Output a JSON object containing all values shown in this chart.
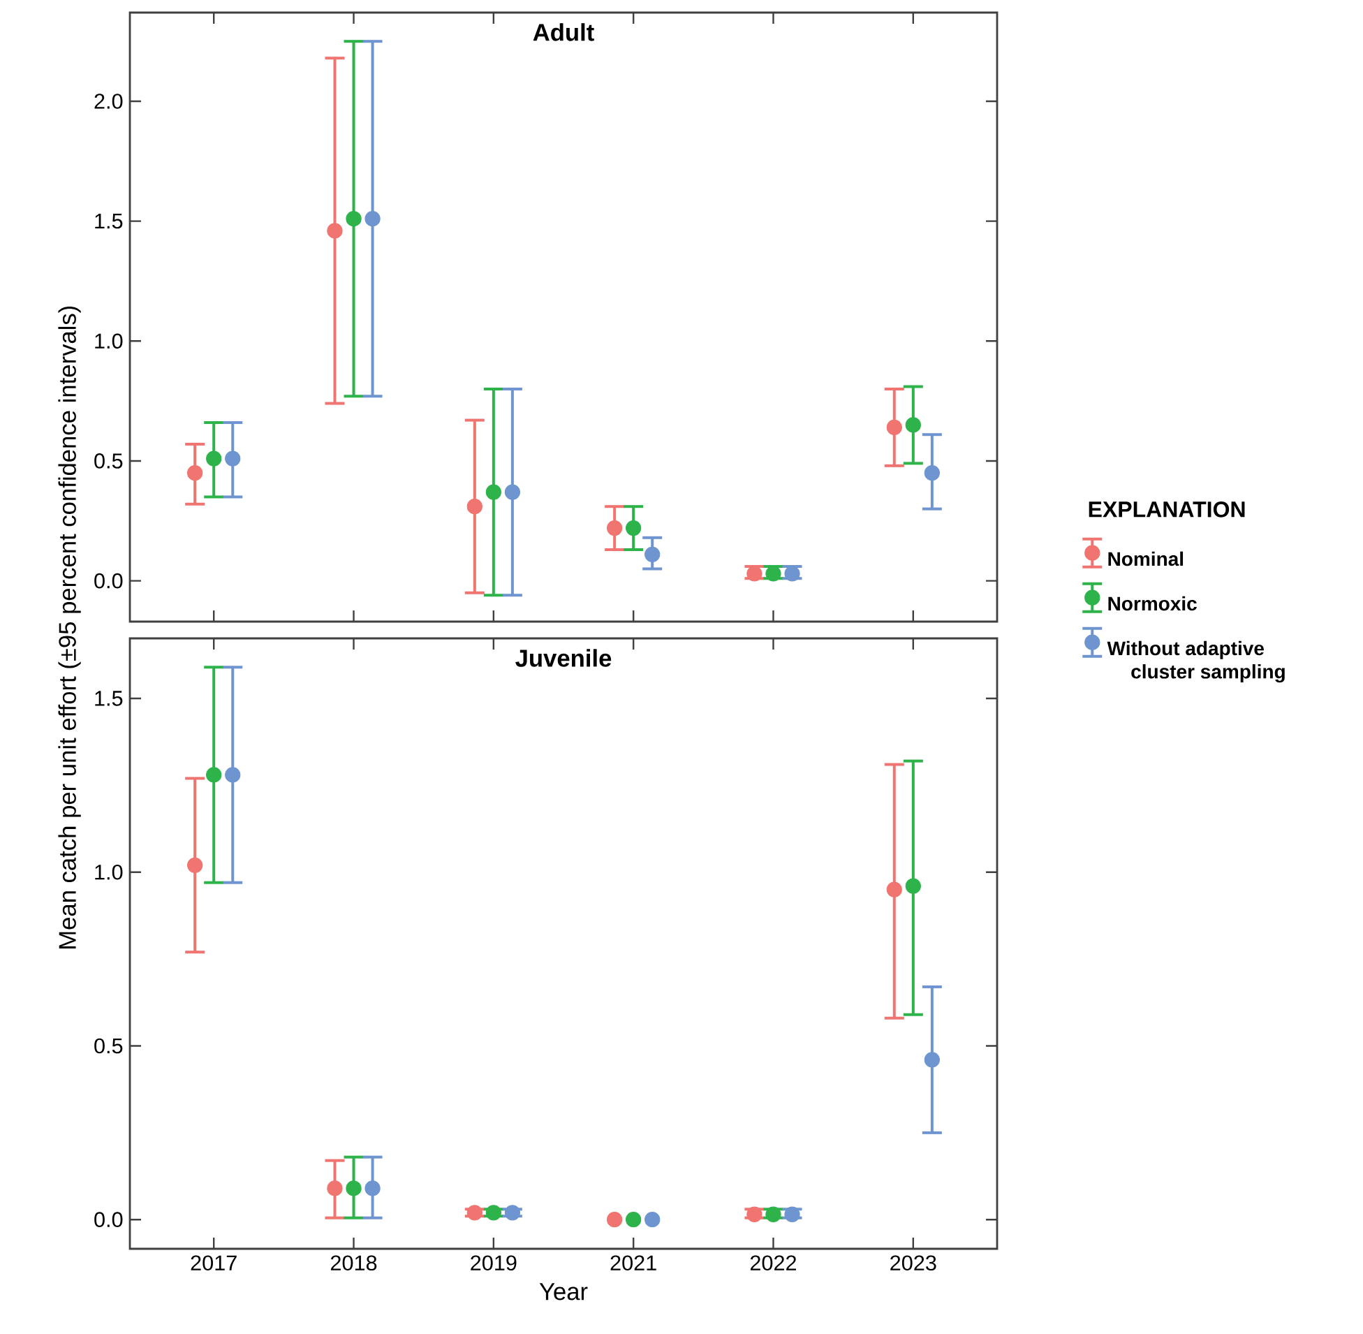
{
  "chart_data": [
    {
      "type": "scatter",
      "title": "Adult",
      "ylabel": "Mean catch per unit effort  (±95 percent confidence intervals)",
      "legend_title": "EXPLANATION",
      "legend": "right",
      "marker": "circle",
      "tick_labels": "y",
      "categories": [
        "2017",
        "2018",
        "2019",
        "2021",
        "2022",
        "2023"
      ],
      "ylim": [
        -0.17,
        2.37
      ],
      "yticks": [
        {
          "value": 0,
          "label": "0.0"
        },
        {
          "value": 0.5,
          "label": "0.5"
        },
        {
          "value": 1,
          "label": "1.0"
        },
        {
          "value": 1.5,
          "label": "1.5"
        },
        {
          "value": 2,
          "label": "2.0"
        }
      ],
      "series": [
        {
          "name": "Nominal",
          "color": "#f07470",
          "values": [
            0.45,
            1.46,
            0.31,
            0.22,
            0.03,
            0.64
          ],
          "errors": [
            [
              0.32,
              0.57
            ],
            [
              0.74,
              2.18
            ],
            [
              -0.05,
              0.67
            ],
            [
              0.13,
              0.31
            ],
            [
              0.01,
              0.06
            ],
            [
              0.48,
              0.8
            ]
          ]
        },
        {
          "name": "Normoxic",
          "color": "#2db34a",
          "values": [
            0.51,
            1.51,
            0.37,
            0.22,
            0.03,
            0.65
          ],
          "errors": [
            [
              0.35,
              0.66
            ],
            [
              0.77,
              2.25
            ],
            [
              -0.06,
              0.8
            ],
            [
              0.13,
              0.31
            ],
            [
              0.01,
              0.06
            ],
            [
              0.49,
              0.81
            ]
          ]
        },
        {
          "name": "Without adaptive cluster sampling",
          "color": "#6e95d0",
          "values": [
            0.51,
            1.51,
            0.37,
            0.11,
            0.03,
            0.45
          ],
          "errors": [
            [
              0.35,
              0.66
            ],
            [
              0.77,
              2.25
            ],
            [
              -0.06,
              0.8
            ],
            [
              0.05,
              0.18
            ],
            [
              0.01,
              0.06
            ],
            [
              0.3,
              0.61
            ]
          ]
        }
      ]
    },
    {
      "type": "scatter",
      "title": "Juvenile",
      "xlabel": "Year",
      "marker": "circle",
      "categories": [
        "2017",
        "2018",
        "2019",
        "2021",
        "2022",
        "2023"
      ],
      "ylim": [
        -0.084,
        1.673
      ],
      "yticks": [
        {
          "value": 0,
          "label": "0.0"
        },
        {
          "value": 0.5,
          "label": "0.5"
        },
        {
          "value": 1,
          "label": "1.0"
        },
        {
          "value": 1.5,
          "label": "1.5"
        }
      ],
      "series": [
        {
          "color": "#f07470",
          "values": [
            1.02,
            0.09,
            0.02,
            0,
            0.015,
            0.95
          ],
          "errors": [
            [
              0.77,
              1.27
            ],
            [
              0.005,
              0.17
            ],
            [
              0.01,
              0.03
            ],
            null,
            [
              0.005,
              0.03
            ],
            [
              0.58,
              1.31
            ]
          ]
        },
        {
          "color": "#2db34a",
          "values": [
            1.28,
            0.09,
            0.02,
            0,
            0.015,
            0.96
          ],
          "errors": [
            [
              0.97,
              1.59
            ],
            [
              0.005,
              0.18
            ],
            [
              0.01,
              0.03
            ],
            null,
            [
              0.005,
              0.03
            ],
            [
              0.59,
              1.32
            ]
          ]
        },
        {
          "color": "#6e95d0",
          "values": [
            1.28,
            0.09,
            0.02,
            0,
            0.015,
            0.46
          ],
          "errors": [
            [
              0.97,
              1.59
            ],
            [
              0.005,
              0.18
            ],
            [
              0.01,
              0.03
            ],
            null,
            [
              0.005,
              0.03
            ],
            [
              0.25,
              0.67
            ]
          ]
        }
      ]
    }
  ]
}
